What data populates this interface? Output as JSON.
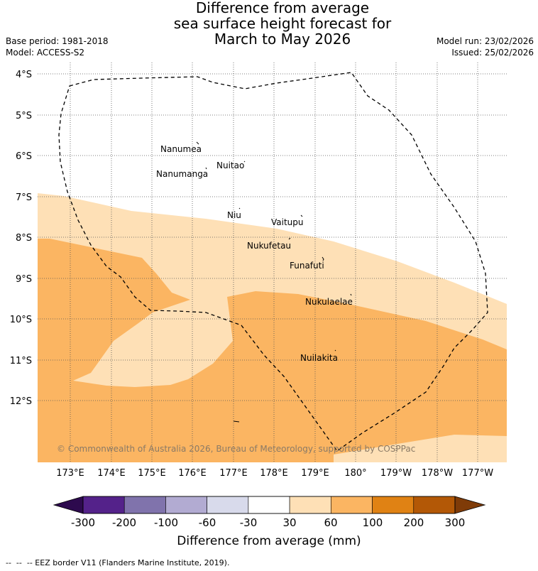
{
  "title": {
    "line1": "Difference from average",
    "line2": "sea surface height forecast for",
    "line3": "March to May 2026"
  },
  "meta": {
    "base_period": "Base period: 1981-2018",
    "model": "Model: ACCESS-S2",
    "model_run": "Model run: 23/02/2026",
    "issued": "Issued: 25/02/2026"
  },
  "map": {
    "lat_labels": [
      "4°S",
      "5°S",
      "6°S",
      "7°S",
      "8°S",
      "9°S",
      "10°S",
      "11°S",
      "12°S"
    ],
    "lon_labels": [
      "173°E",
      "174°E",
      "175°E",
      "176°E",
      "177°E",
      "178°E",
      "179°E",
      "180°",
      "179°W",
      "178°W",
      "177°W"
    ],
    "islands": [
      "Nanumea",
      "Nanumanga",
      "Nuitao",
      "Niu",
      "Vaitupu",
      "Nukufetau",
      "Funafuti",
      "Nukulaelae",
      "Nuilakita"
    ],
    "copyright": "© Commonwealth of Australia 2026, Bureau of Meteorology, supported by COSPPac"
  },
  "colorbar": {
    "ticks": [
      "-300",
      "-200",
      "-100",
      "-60",
      "-30",
      "30",
      "60",
      "100",
      "200",
      "300"
    ],
    "colors": [
      "#2d0a4e",
      "#54228a",
      "#8073ac",
      "#b2abd2",
      "#d8daeb",
      "#ffffff",
      "#fee0b6",
      "#fbb562",
      "#e08214",
      "#b35806",
      "#7f3b08"
    ],
    "label": "Difference from average (mm)"
  },
  "footnote": "-- EEZ border V11 (Flanders Marine Institute, 2019)."
}
